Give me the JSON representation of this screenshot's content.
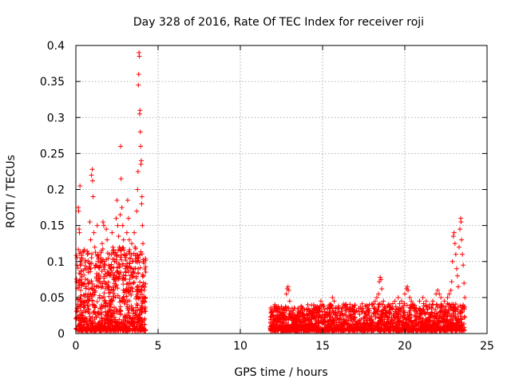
{
  "chart_data": {
    "type": "scatter",
    "title": "Day 328 of 2016, Rate Of TEC Index for receiver roji",
    "xlabel": "GPS time / hours",
    "ylabel": "ROTI / TECUs",
    "xlim": [
      0,
      25
    ],
    "ylim": [
      0,
      0.4
    ],
    "grid": true,
    "marker": "+",
    "marker_color": "#ff0000",
    "x_ticks": [
      0,
      5,
      10,
      15,
      20,
      25
    ],
    "y_ticks": [
      0,
      0.05,
      0.1,
      0.15,
      0.2,
      0.25,
      0.3,
      0.35,
      0.4
    ],
    "x_tick_labels": [
      "0",
      "5",
      "10",
      "15",
      "20",
      "25"
    ],
    "y_tick_labels": [
      "0",
      "0.05",
      "0.1",
      "0.15",
      "0.2",
      "0.25",
      "0.3",
      "0.35",
      "0.4"
    ],
    "series": [
      {
        "name": "ROTI",
        "points": [
          [
            0.05,
            0.072
          ],
          [
            0.08,
            0.095
          ],
          [
            0.1,
            0.03
          ],
          [
            0.12,
            0.048
          ],
          [
            0.15,
            0.175
          ],
          [
            0.17,
            0.17
          ],
          [
            0.2,
            0.145
          ],
          [
            0.22,
            0.14
          ],
          [
            0.25,
            0.205
          ],
          [
            0.28,
            0.1
          ],
          [
            0.3,
            0.06
          ],
          [
            0.35,
            0.04
          ],
          [
            0.4,
            0.025
          ],
          [
            0.5,
            0.07
          ],
          [
            0.55,
            0.09
          ],
          [
            0.6,
            0.055
          ],
          [
            0.7,
            0.11
          ],
          [
            0.75,
            0.085
          ],
          [
            0.8,
            0.045
          ],
          [
            0.85,
            0.155
          ],
          [
            0.9,
            0.13
          ],
          [
            0.95,
            0.22
          ],
          [
            1.0,
            0.228
          ],
          [
            1.02,
            0.212
          ],
          [
            1.05,
            0.19
          ],
          [
            1.1,
            0.14
          ],
          [
            1.15,
            0.12
          ],
          [
            1.2,
            0.095
          ],
          [
            1.25,
            0.065
          ],
          [
            1.3,
            0.15
          ],
          [
            1.35,
            0.11
          ],
          [
            1.4,
            0.08
          ],
          [
            1.45,
            0.05
          ],
          [
            1.5,
            0.035
          ],
          [
            1.6,
            0.125
          ],
          [
            1.65,
            0.155
          ],
          [
            1.7,
            0.15
          ],
          [
            1.75,
            0.1
          ],
          [
            1.8,
            0.07
          ],
          [
            1.85,
            0.145
          ],
          [
            1.9,
            0.13
          ],
          [
            1.95,
            0.085
          ],
          [
            2.0,
            0.06
          ],
          [
            2.05,
            0.11
          ],
          [
            2.1,
            0.09
          ],
          [
            2.15,
            0.045
          ],
          [
            2.2,
            0.14
          ],
          [
            2.25,
            0.12
          ],
          [
            2.3,
            0.075
          ],
          [
            2.35,
            0.1
          ],
          [
            2.4,
            0.065
          ],
          [
            2.45,
            0.16
          ],
          [
            2.5,
            0.185
          ],
          [
            2.55,
            0.15
          ],
          [
            2.6,
            0.135
          ],
          [
            2.65,
            0.12
          ],
          [
            2.7,
            0.165
          ],
          [
            2.72,
            0.26
          ],
          [
            2.75,
            0.215
          ],
          [
            2.8,
            0.175
          ],
          [
            2.85,
            0.15
          ],
          [
            2.9,
            0.13
          ],
          [
            2.95,
            0.11
          ],
          [
            3.0,
            0.09
          ],
          [
            3.05,
            0.06
          ],
          [
            3.1,
            0.14
          ],
          [
            3.15,
            0.185
          ],
          [
            3.2,
            0.16
          ],
          [
            3.25,
            0.13
          ],
          [
            3.3,
            0.105
          ],
          [
            3.35,
            0.08
          ],
          [
            3.4,
            0.125
          ],
          [
            3.45,
            0.1
          ],
          [
            3.5,
            0.07
          ],
          [
            3.55,
            0.14
          ],
          [
            3.6,
            0.12
          ],
          [
            3.65,
            0.1
          ],
          [
            3.7,
            0.17
          ],
          [
            3.75,
            0.2
          ],
          [
            3.78,
            0.225
          ],
          [
            3.8,
            0.345
          ],
          [
            3.82,
            0.36
          ],
          [
            3.84,
            0.39
          ],
          [
            3.86,
            0.385
          ],
          [
            3.88,
            0.305
          ],
          [
            3.9,
            0.31
          ],
          [
            3.92,
            0.28
          ],
          [
            3.94,
            0.26
          ],
          [
            3.96,
            0.235
          ],
          [
            3.98,
            0.24
          ],
          [
            4.0,
            0.18
          ],
          [
            4.02,
            0.19
          ],
          [
            4.05,
            0.15
          ],
          [
            4.08,
            0.125
          ],
          [
            4.1,
            0.1
          ],
          [
            4.12,
            0.08
          ],
          [
            4.15,
            0.06
          ],
          [
            4.18,
            0.045
          ],
          [
            11.9,
            0.03
          ],
          [
            12.0,
            0.025
          ],
          [
            12.1,
            0.04
          ],
          [
            12.2,
            0.035
          ],
          [
            12.3,
            0.02
          ],
          [
            12.4,
            0.03
          ],
          [
            12.5,
            0.025
          ],
          [
            12.6,
            0.035
          ],
          [
            12.7,
            0.02
          ],
          [
            12.8,
            0.055
          ],
          [
            12.85,
            0.062
          ],
          [
            12.9,
            0.065
          ],
          [
            12.95,
            0.06
          ],
          [
            13.0,
            0.045
          ],
          [
            13.1,
            0.03
          ],
          [
            13.2,
            0.025
          ],
          [
            13.3,
            0.035
          ],
          [
            13.4,
            0.02
          ],
          [
            13.5,
            0.03
          ],
          [
            13.6,
            0.025
          ],
          [
            13.7,
            0.038
          ],
          [
            13.8,
            0.035
          ],
          [
            13.9,
            0.025
          ],
          [
            14.2,
            0.02
          ],
          [
            14.3,
            0.03
          ],
          [
            14.4,
            0.025
          ],
          [
            14.5,
            0.035
          ],
          [
            14.6,
            0.02
          ],
          [
            14.7,
            0.03
          ],
          [
            14.8,
            0.035
          ],
          [
            14.9,
            0.045
          ],
          [
            15.0,
            0.04
          ],
          [
            15.1,
            0.03
          ],
          [
            15.2,
            0.025
          ],
          [
            15.3,
            0.035
          ],
          [
            15.4,
            0.03
          ],
          [
            15.5,
            0.04
          ],
          [
            15.6,
            0.05
          ],
          [
            15.7,
            0.045
          ],
          [
            15.8,
            0.035
          ],
          [
            15.9,
            0.025
          ],
          [
            16.0,
            0.03
          ],
          [
            16.2,
            0.035
          ],
          [
            16.4,
            0.04
          ],
          [
            16.6,
            0.03
          ],
          [
            16.8,
            0.035
          ],
          [
            17.0,
            0.03
          ],
          [
            17.2,
            0.035
          ],
          [
            17.4,
            0.03
          ],
          [
            17.6,
            0.038
          ],
          [
            17.8,
            0.035
          ],
          [
            18.0,
            0.04
          ],
          [
            18.2,
            0.045
          ],
          [
            18.3,
            0.05
          ],
          [
            18.4,
            0.055
          ],
          [
            18.45,
            0.072
          ],
          [
            18.5,
            0.078
          ],
          [
            18.55,
            0.075
          ],
          [
            18.6,
            0.062
          ],
          [
            18.7,
            0.045
          ],
          [
            18.8,
            0.035
          ],
          [
            19.0,
            0.04
          ],
          [
            19.2,
            0.035
          ],
          [
            19.4,
            0.045
          ],
          [
            19.6,
            0.05
          ],
          [
            19.8,
            0.045
          ],
          [
            20.0,
            0.055
          ],
          [
            20.1,
            0.062
          ],
          [
            20.15,
            0.065
          ],
          [
            20.2,
            0.06
          ],
          [
            20.3,
            0.05
          ],
          [
            20.4,
            0.045
          ],
          [
            20.5,
            0.04
          ],
          [
            20.7,
            0.035
          ],
          [
            20.9,
            0.045
          ],
          [
            21.1,
            0.05
          ],
          [
            21.3,
            0.045
          ],
          [
            21.5,
            0.04
          ],
          [
            21.7,
            0.045
          ],
          [
            21.9,
            0.055
          ],
          [
            22.0,
            0.06
          ],
          [
            22.1,
            0.055
          ],
          [
            22.2,
            0.05
          ],
          [
            22.4,
            0.045
          ],
          [
            22.6,
            0.05
          ],
          [
            22.7,
            0.055
          ],
          [
            22.8,
            0.06
          ],
          [
            22.85,
            0.072
          ],
          [
            22.9,
            0.1
          ],
          [
            22.95,
            0.135
          ],
          [
            23.0,
            0.14
          ],
          [
            23.05,
            0.125
          ],
          [
            23.1,
            0.11
          ],
          [
            23.15,
            0.09
          ],
          [
            23.2,
            0.08
          ],
          [
            23.25,
            0.065
          ],
          [
            23.3,
            0.12
          ],
          [
            23.35,
            0.145
          ],
          [
            23.4,
            0.16
          ],
          [
            23.42,
            0.155
          ],
          [
            23.45,
            0.13
          ],
          [
            23.5,
            0.11
          ],
          [
            23.55,
            0.095
          ],
          [
            23.6,
            0.07
          ],
          [
            23.65,
            0.05
          ]
        ]
      }
    ],
    "dense_bands": [
      {
        "x_start": 0.0,
        "x_end": 4.25,
        "y_low": 0.004,
        "y_high": 0.12,
        "density": 950
      },
      {
        "x_start": 11.8,
        "x_end": 14.0,
        "y_low": 0.004,
        "y_high": 0.038,
        "density": 420
      },
      {
        "x_start": 14.0,
        "x_end": 23.65,
        "y_low": 0.004,
        "y_high": 0.042,
        "density": 1500
      }
    ]
  }
}
